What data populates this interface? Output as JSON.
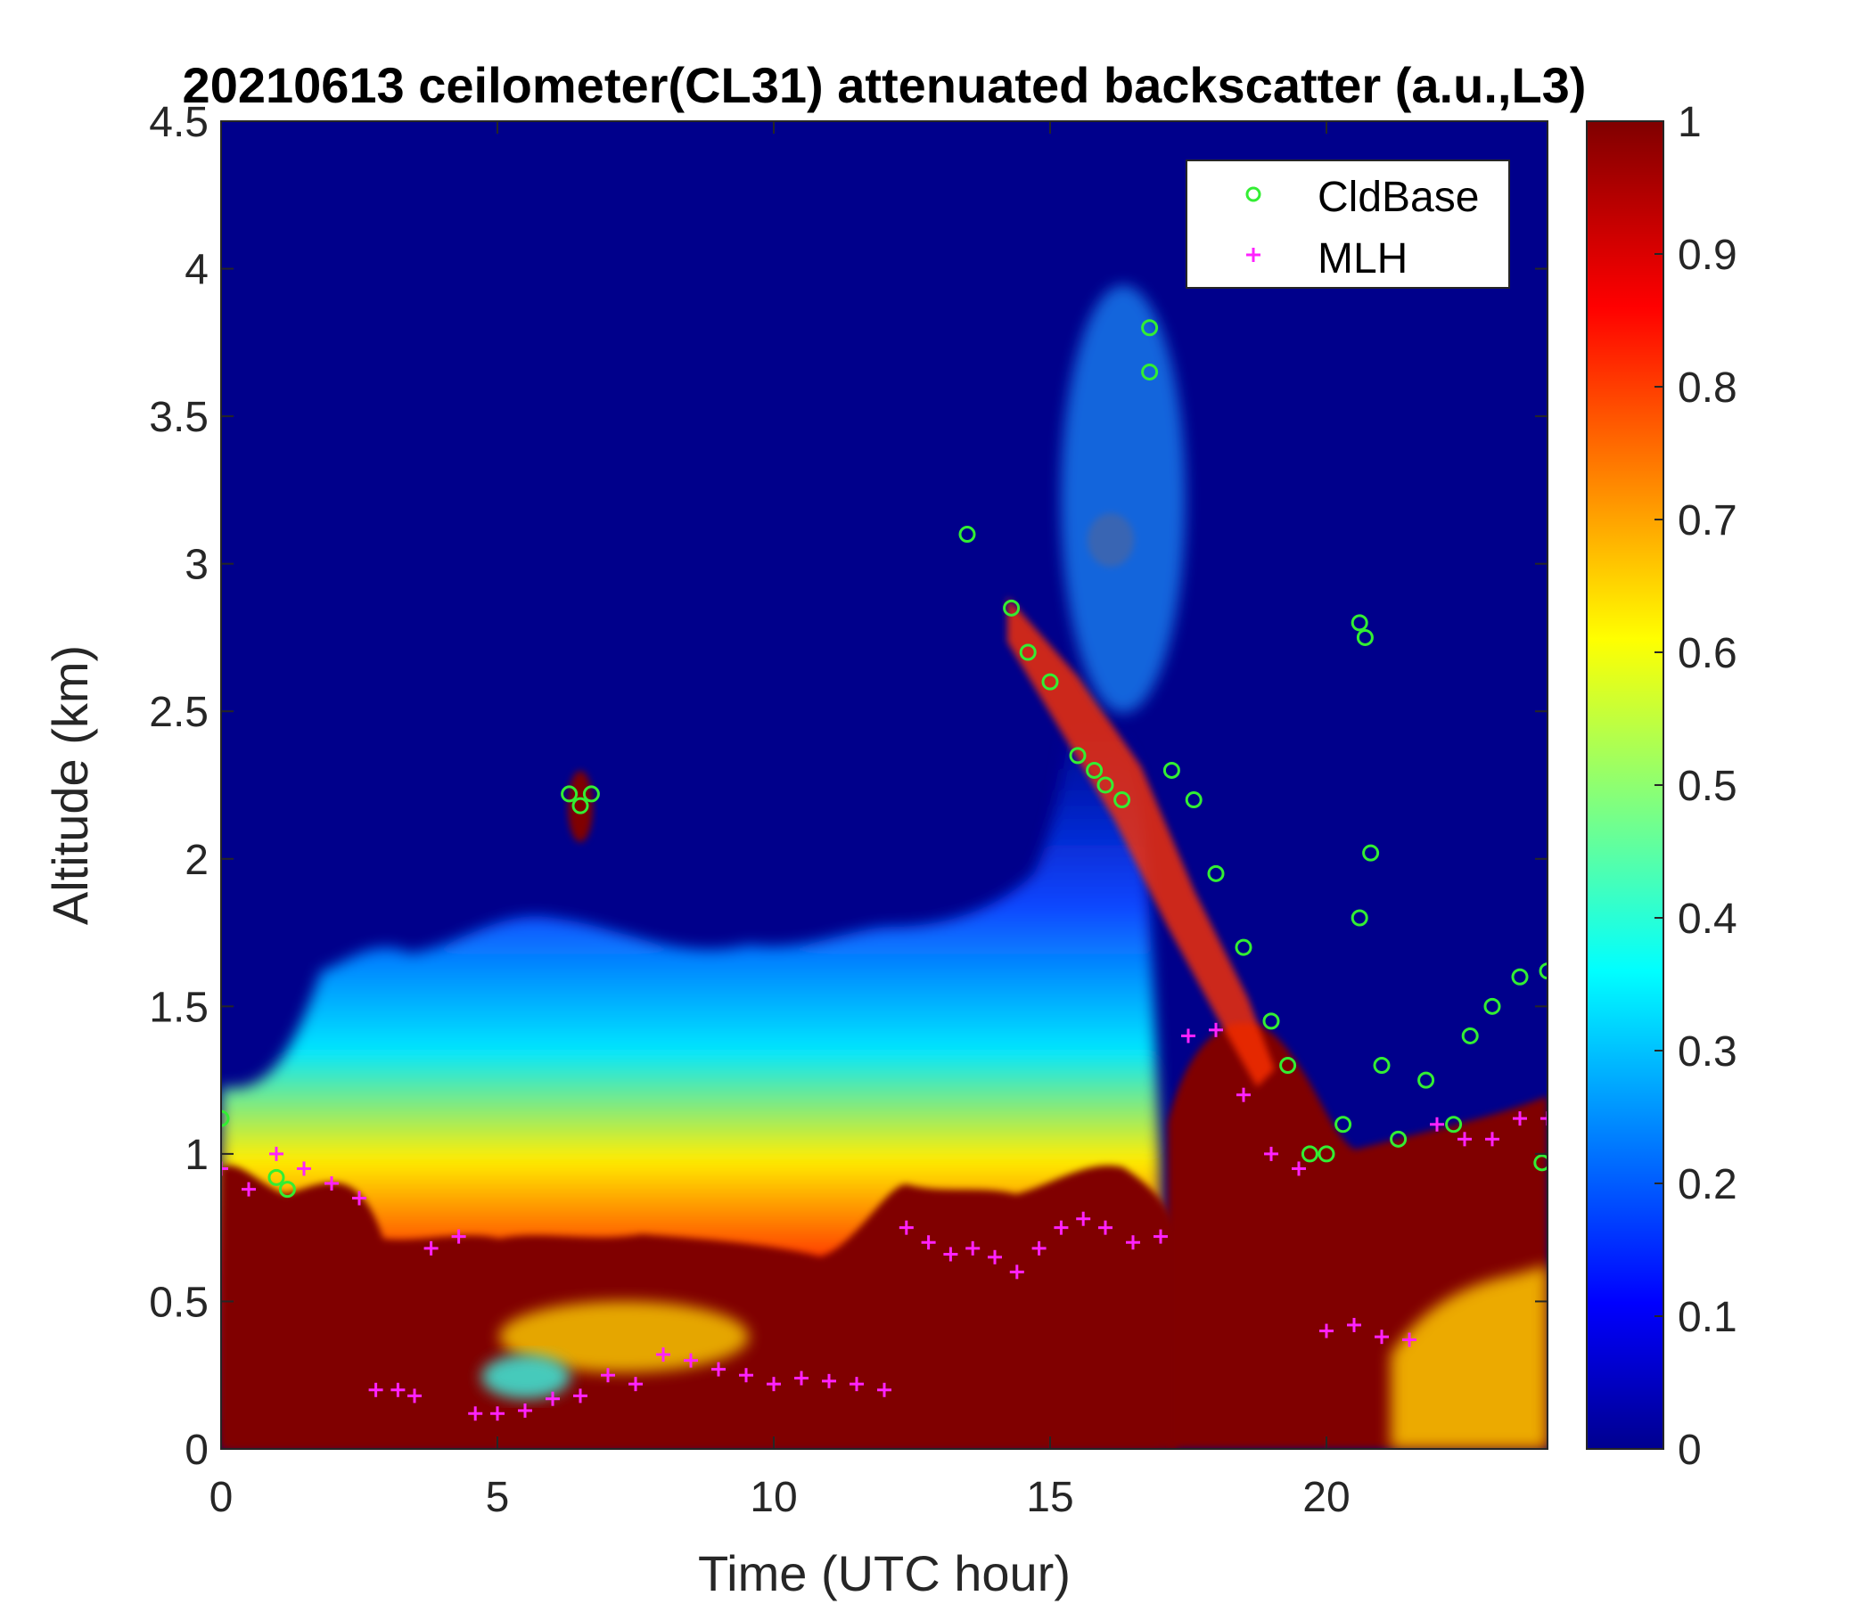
{
  "chart_data": {
    "type": "heatmap",
    "title": "20210613 ceilometer(CL31) attenuated backscatter (a.u.,L3)",
    "xlabel": "Time (UTC hour)",
    "ylabel": "Altitude (km)",
    "xlim": [
      0,
      24
    ],
    "ylim": [
      0,
      4.5
    ],
    "x_ticks": [
      "0",
      "5",
      "10",
      "15",
      "20"
    ],
    "y_ticks": [
      "0",
      "0.5",
      "1",
      "1.5",
      "2",
      "2.5",
      "3",
      "3.5",
      "4",
      "4.5"
    ],
    "colorbar": {
      "range": [
        0,
        1
      ],
      "ticks": [
        "0",
        "0.1",
        "0.2",
        "0.3",
        "0.4",
        "0.5",
        "0.6",
        "0.7",
        "0.8",
        "0.9",
        "1"
      ],
      "colormap": "jet"
    },
    "grid": false,
    "legend_position": "top-right",
    "colors": {
      "cldbase": "#33ee33",
      "mlh": "#ff22ff",
      "background": "#00008b",
      "saturated": "#800000"
    },
    "legend": [
      {
        "label": "CldBase",
        "marker": "circle"
      },
      {
        "label": "MLH",
        "marker": "plus"
      }
    ],
    "series": [
      {
        "name": "CldBase",
        "marker": "circle",
        "x": [
          0.0,
          1.0,
          1.2,
          6.3,
          6.5,
          6.7,
          13.5,
          14.3,
          14.6,
          15.0,
          15.5,
          15.8,
          16.0,
          16.3,
          16.8,
          16.8,
          17.2,
          17.6,
          18.0,
          18.5,
          19.0,
          19.3,
          19.7,
          20.0,
          20.3,
          20.6,
          20.6,
          20.7,
          20.8,
          21.0,
          21.3,
          21.8,
          22.3,
          22.6,
          23.0,
          23.5,
          23.9,
          24.0
        ],
        "y": [
          1.12,
          0.92,
          0.88,
          2.22,
          2.18,
          2.22,
          3.1,
          2.85,
          2.7,
          2.6,
          2.35,
          2.3,
          2.25,
          2.2,
          3.8,
          3.65,
          2.3,
          2.2,
          1.95,
          1.7,
          1.45,
          1.3,
          1.0,
          1.0,
          1.1,
          2.8,
          1.8,
          2.75,
          2.02,
          1.3,
          1.05,
          1.25,
          1.1,
          1.4,
          1.5,
          1.6,
          0.97,
          1.62
        ]
      },
      {
        "name": "MLH",
        "marker": "plus",
        "x": [
          0.0,
          0.5,
          1.0,
          1.5,
          2.0,
          2.5,
          2.8,
          3.2,
          3.5,
          3.8,
          4.3,
          4.6,
          5.0,
          5.5,
          6.0,
          6.5,
          7.0,
          7.5,
          8.0,
          8.5,
          9.0,
          9.5,
          10.0,
          10.5,
          11.0,
          11.5,
          12.0,
          12.4,
          12.8,
          13.2,
          13.6,
          14.0,
          14.4,
          14.8,
          15.2,
          15.6,
          16.0,
          16.5,
          17.0,
          17.5,
          18.0,
          18.5,
          19.0,
          19.5,
          20.0,
          20.5,
          21.0,
          21.5,
          22.0,
          22.5,
          23.0,
          23.5,
          24.0
        ],
        "y": [
          0.95,
          0.88,
          1.0,
          0.95,
          0.9,
          0.85,
          0.2,
          0.2,
          0.18,
          0.68,
          0.72,
          0.12,
          0.12,
          0.13,
          0.17,
          0.18,
          0.25,
          0.22,
          0.32,
          0.3,
          0.27,
          0.25,
          0.22,
          0.24,
          0.23,
          0.22,
          0.2,
          0.75,
          0.7,
          0.66,
          0.68,
          0.65,
          0.6,
          0.68,
          0.75,
          0.78,
          0.75,
          0.7,
          0.72,
          1.4,
          1.42,
          1.2,
          1.0,
          0.95,
          0.4,
          0.42,
          0.38,
          0.37,
          1.1,
          1.05,
          1.05,
          1.12,
          1.12
        ]
      }
    ]
  }
}
